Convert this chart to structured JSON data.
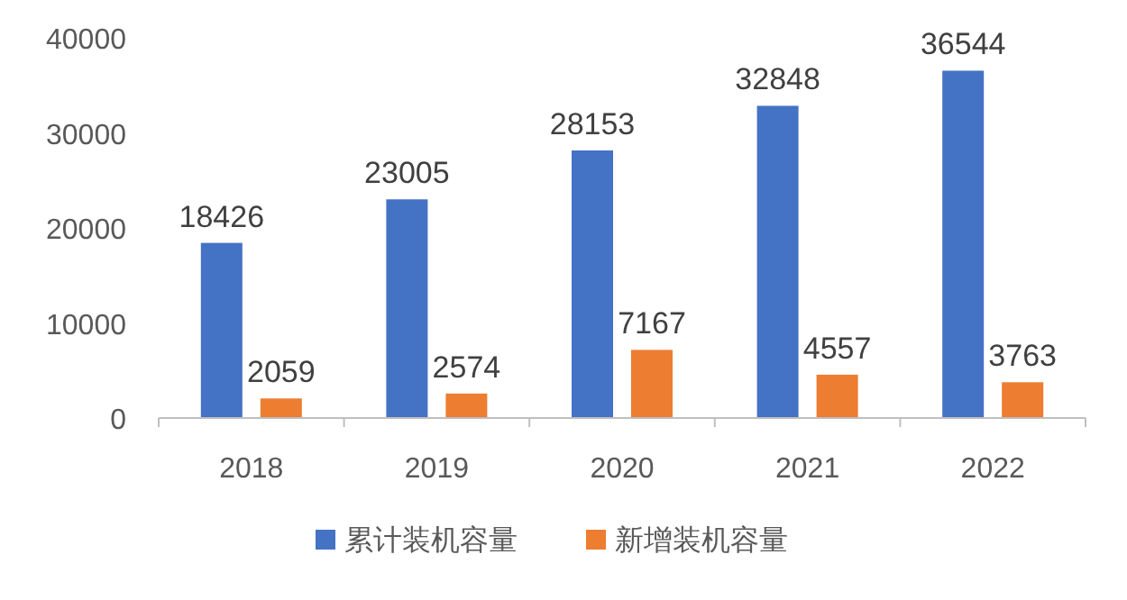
{
  "chart_data": {
    "type": "bar",
    "categories": [
      "2018",
      "2019",
      "2020",
      "2021",
      "2022"
    ],
    "series": [
      {
        "name": "累计装机容量",
        "color": "#4472c4",
        "values": [
          18426,
          23005,
          28153,
          32848,
          36544
        ]
      },
      {
        "name": "新增装机容量",
        "color": "#ed7d31",
        "values": [
          2059,
          2574,
          7167,
          4557,
          3763
        ]
      }
    ],
    "ylim": [
      0,
      40000
    ],
    "yticks": [
      0,
      10000,
      20000,
      30000,
      40000
    ],
    "data_labels": true,
    "legend": "bottom"
  }
}
